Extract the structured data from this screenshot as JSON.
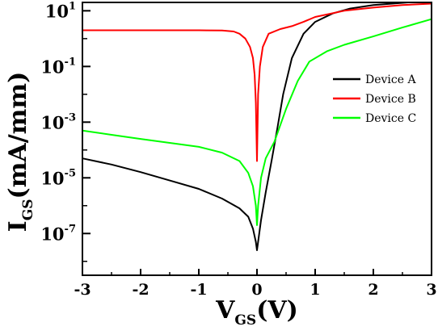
{
  "chart_data": {
    "type": "line",
    "xlabel": "V",
    "xlabel_sub": "GS",
    "xlabel_unit": "(V)",
    "ylabel": "I",
    "ylabel_sub": "GS",
    "ylabel_unit": "(mA/mm)",
    "xlim": [
      -3,
      3
    ],
    "ylim_log10": [
      -8.5,
      1.3
    ],
    "y_scale": "log",
    "x_ticks": [
      "-3",
      "-2",
      "-1",
      "0",
      "1",
      "2",
      "3"
    ],
    "x_tick_values": [
      -3,
      -2,
      -1,
      0,
      1,
      2,
      3
    ],
    "y_tick_mantissa": "10",
    "y_tick_exponents": [
      "1",
      "-1",
      "-3",
      "-5",
      "-7"
    ],
    "y_tick_values_log10": [
      1,
      -1,
      -3,
      -5,
      -7
    ],
    "legend_position": "top-right",
    "series": [
      {
        "name": "Device A",
        "color": "#000000",
        "points": [
          [
            -3.0,
            5e-05
          ],
          [
            -2.5,
            3e-05
          ],
          [
            -2.0,
            1.6e-05
          ],
          [
            -1.5,
            8e-06
          ],
          [
            -1.0,
            4e-06
          ],
          [
            -0.6,
            1.8e-06
          ],
          [
            -0.3,
            8e-07
          ],
          [
            -0.15,
            4e-07
          ],
          [
            -0.07,
            1.5e-07
          ],
          [
            -0.02,
            5e-08
          ],
          [
            0.0,
            2.5e-08
          ],
          [
            0.02,
            5e-08
          ],
          [
            0.07,
            3e-07
          ],
          [
            0.15,
            3e-06
          ],
          [
            0.25,
            4e-05
          ],
          [
            0.35,
            0.0006
          ],
          [
            0.45,
            0.01
          ],
          [
            0.6,
            0.2
          ],
          [
            0.8,
            1.5
          ],
          [
            1.0,
            4
          ],
          [
            1.3,
            8
          ],
          [
            1.6,
            12
          ],
          [
            2.0,
            16
          ],
          [
            2.6,
            20
          ]
        ]
      },
      {
        "name": "Device B",
        "color": "#ff0000",
        "points": [
          [
            -3.0,
            2.0
          ],
          [
            -2.5,
            2.0
          ],
          [
            -2.0,
            2.0
          ],
          [
            -1.5,
            2.0
          ],
          [
            -1.0,
            2.0
          ],
          [
            -0.6,
            1.95
          ],
          [
            -0.4,
            1.8
          ],
          [
            -0.3,
            1.5
          ],
          [
            -0.2,
            1.0
          ],
          [
            -0.12,
            0.5
          ],
          [
            -0.07,
            0.2
          ],
          [
            -0.04,
            0.05
          ],
          [
            -0.02,
            0.005
          ],
          [
            0.0,
            4e-05
          ],
          [
            0.02,
            0.01
          ],
          [
            0.05,
            0.1
          ],
          [
            0.1,
            0.5
          ],
          [
            0.2,
            1.5
          ],
          [
            0.4,
            2.2
          ],
          [
            0.6,
            2.8
          ],
          [
            0.8,
            4
          ],
          [
            1.0,
            6
          ],
          [
            1.5,
            10
          ],
          [
            2.0,
            13
          ],
          [
            2.5,
            16
          ],
          [
            3.0,
            18
          ]
        ]
      },
      {
        "name": "Device C",
        "color": "#00ff00",
        "points": [
          [
            -3.0,
            0.0005
          ],
          [
            -2.5,
            0.00035
          ],
          [
            -2.0,
            0.00025
          ],
          [
            -1.5,
            0.00018
          ],
          [
            -1.0,
            0.00013
          ],
          [
            -0.6,
            8e-05
          ],
          [
            -0.3,
            4e-05
          ],
          [
            -0.15,
            1.5e-05
          ],
          [
            -0.07,
            5e-06
          ],
          [
            -0.02,
            1e-06
          ],
          [
            0.0,
            2e-07
          ],
          [
            0.02,
            1e-06
          ],
          [
            0.07,
            1e-05
          ],
          [
            0.15,
            5e-05
          ],
          [
            0.3,
            0.0002
          ],
          [
            0.5,
            0.003
          ],
          [
            0.7,
            0.03
          ],
          [
            0.9,
            0.15
          ],
          [
            1.2,
            0.35
          ],
          [
            1.5,
            0.6
          ],
          [
            2.0,
            1.2
          ],
          [
            2.5,
            2.5
          ],
          [
            3.0,
            5
          ]
        ]
      }
    ]
  }
}
